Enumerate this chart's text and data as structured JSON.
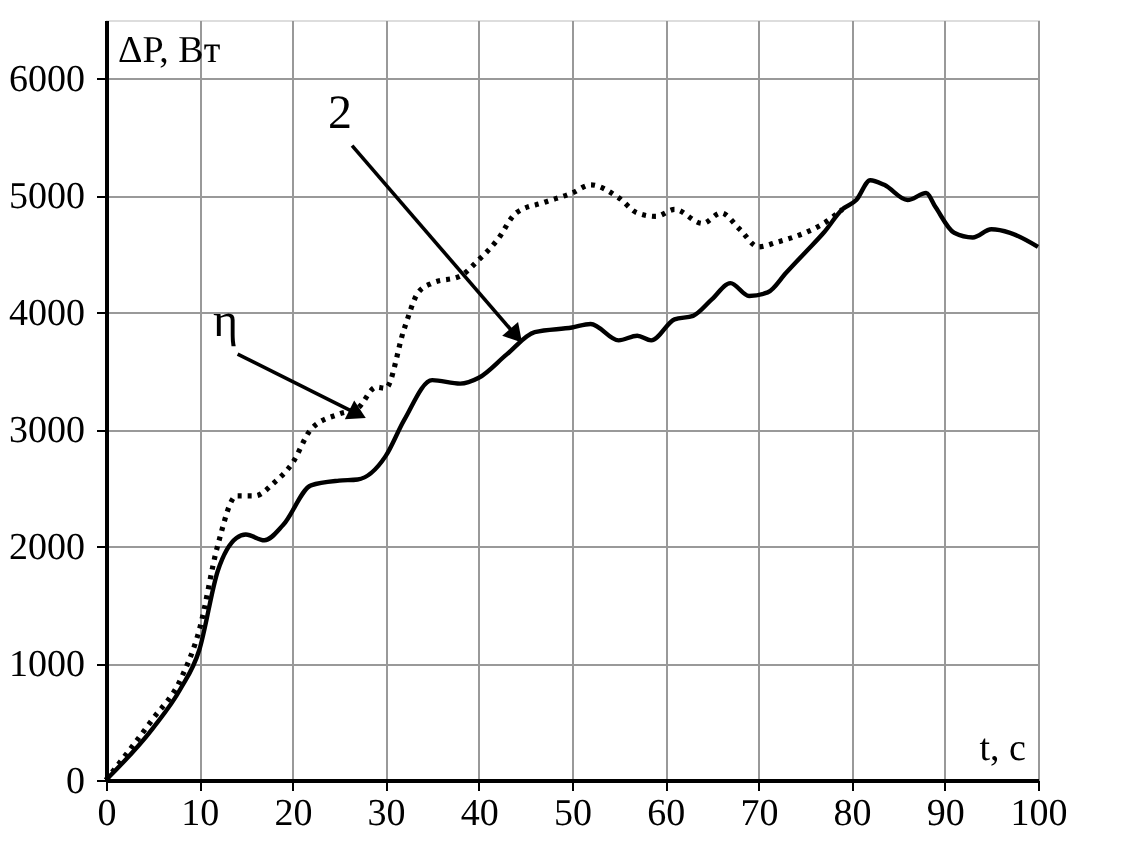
{
  "chart_data": {
    "type": "line",
    "xlabel": "t, с",
    "ylabel": "ΔP, Вт",
    "xlim": [
      0,
      100
    ],
    "xticks": [
      0,
      10,
      20,
      30,
      40,
      50,
      60,
      70,
      80,
      90,
      100
    ],
    "ylim": [
      0,
      6500
    ],
    "yticks": [
      0,
      1000,
      2000,
      3000,
      4000,
      5000,
      6000
    ],
    "grid": true,
    "series": [
      {
        "color": "#000000",
        "line_style": "solid",
        "x": [
          0,
          5,
          8,
          10,
          12,
          14,
          15,
          17,
          19,
          22,
          25,
          27,
          30,
          32,
          35,
          38,
          40,
          43,
          46,
          50,
          52,
          55,
          57,
          58.5,
          61,
          63,
          65,
          67,
          69,
          71,
          73,
          75,
          77,
          79,
          80.5,
          82,
          83.5,
          86,
          88,
          89,
          91,
          93,
          95,
          97,
          100
        ],
        "values": [
          0,
          440,
          780,
          1110,
          1790,
          2070,
          2100,
          2050,
          2180,
          2520,
          2560,
          2570,
          2770,
          3080,
          3420,
          3390,
          3440,
          3640,
          3830,
          3870,
          3900,
          3760,
          3800,
          3760,
          3940,
          3970,
          4110,
          4250,
          4140,
          4170,
          4340,
          4510,
          4680,
          4880,
          4960,
          5130,
          5090,
          4960,
          5020,
          4900,
          4680,
          4640,
          4710,
          4680,
          4560
        ]
      },
      {
        "color": "#000000",
        "line_style": "dotted",
        "x": [
          0,
          5,
          8,
          10,
          12,
          14,
          16,
          18,
          20,
          22,
          25,
          27,
          29,
          30,
          32,
          33.5,
          35,
          38,
          40,
          42,
          44,
          47,
          50,
          52,
          55,
          57,
          59,
          61,
          64,
          66,
          68,
          70,
          72,
          75,
          77,
          79
        ],
        "values": [
          0,
          520,
          860,
          1280,
          2010,
          2430,
          2430,
          2540,
          2710,
          3000,
          3130,
          3180,
          3360,
          3350,
          3860,
          4170,
          4250,
          4310,
          4450,
          4620,
          4850,
          4940,
          5020,
          5090,
          4980,
          4850,
          4820,
          4880,
          4760,
          4850,
          4710,
          4560,
          4600,
          4680,
          4760,
          4880
        ]
      }
    ],
    "annotations": [
      {
        "text": "2",
        "x": 44,
        "y": 3800
      },
      {
        "text": "η",
        "x": 27,
        "y": 3130
      }
    ]
  }
}
